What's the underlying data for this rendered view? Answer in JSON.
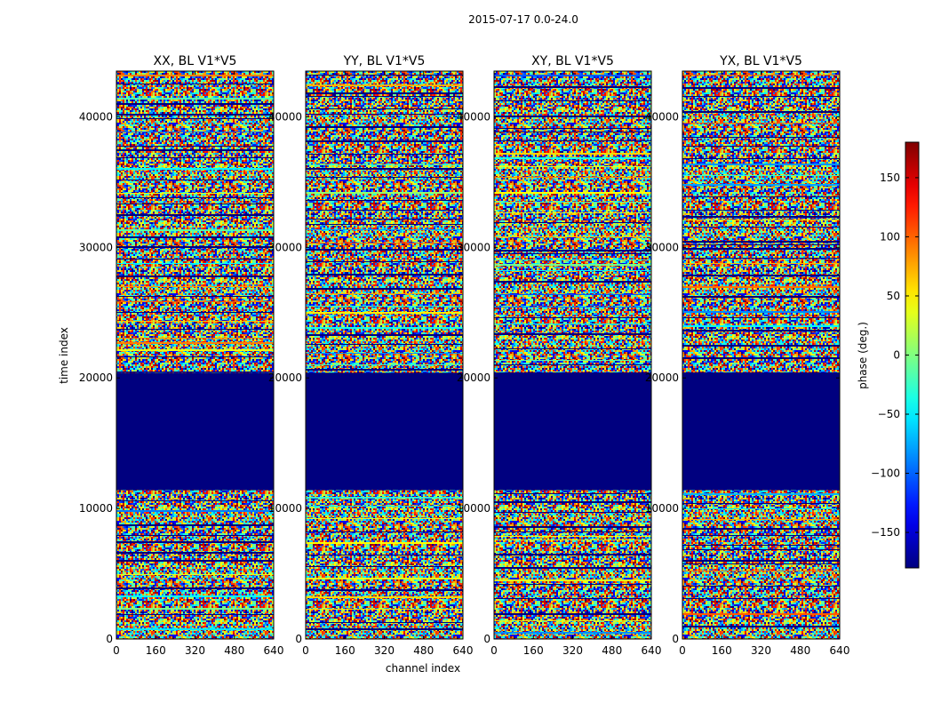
{
  "figure_title": "2015-07-17 0.0-24.0",
  "chart_data": {
    "type": "heatmap",
    "suptitle": "2015-07-17 0.0-24.0",
    "xlabel": "channel index",
    "ylabel": "time index",
    "x_range": [
      0,
      640
    ],
    "y_range": [
      0,
      43500
    ],
    "x_ticks": [
      "0",
      "160",
      "320",
      "480",
      "640"
    ],
    "y_ticks": [
      "0",
      "10000",
      "20000",
      "30000",
      "40000"
    ],
    "colormap": "jet",
    "colorbar": {
      "label": "phase (deg.)",
      "range": [
        -180,
        180
      ],
      "ticks": [
        "150",
        "100",
        "50",
        "0",
        "−50",
        "−100",
        "−150"
      ]
    },
    "panels": [
      {
        "title": "XX, BL V1*V5"
      },
      {
        "title": "YY, BL V1*V5"
      },
      {
        "title": "XY, BL V1*V5"
      },
      {
        "title": "YX, BL V1*V5"
      }
    ],
    "flagged_time_range": [
      11400,
      20400
    ],
    "flagged_value_deg": -180
  },
  "colors": {
    "flag": "#00007f"
  }
}
